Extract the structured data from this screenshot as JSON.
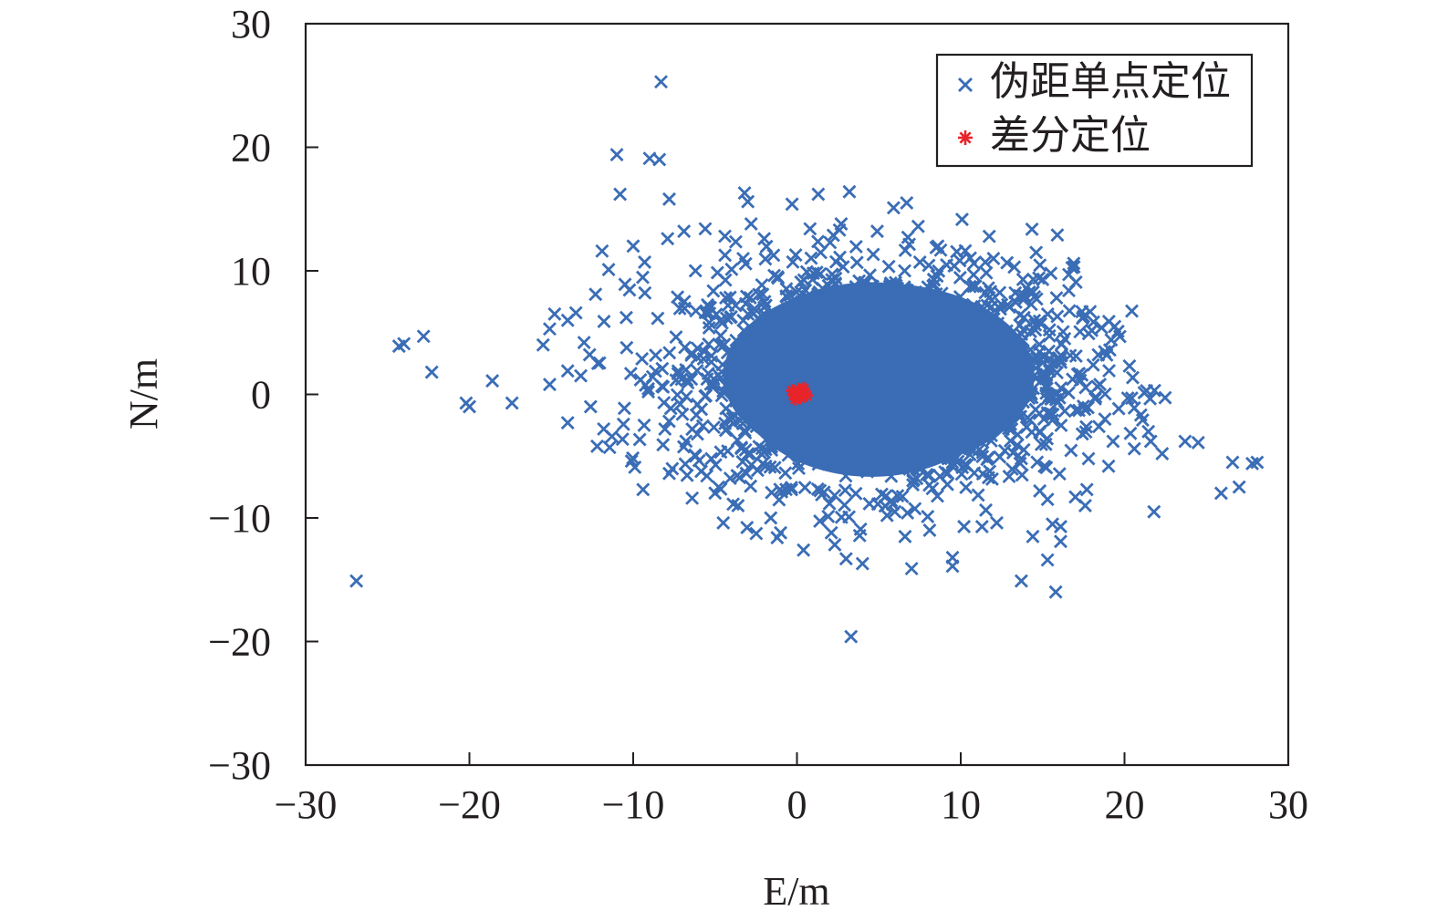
{
  "chart_data": {
    "type": "scatter",
    "title": "",
    "xlabel": "E/m",
    "ylabel": "N/m",
    "xlim": [
      -30,
      30
    ],
    "ylim": [
      -30,
      30
    ],
    "xticks": [
      -30,
      -20,
      -10,
      0,
      10,
      20,
      30
    ],
    "yticks": [
      -30,
      -20,
      -10,
      0,
      10,
      20,
      30
    ],
    "xtick_labels": [
      "−30",
      "−20",
      "−10",
      "0",
      "10",
      "20",
      "30"
    ],
    "ytick_labels": [
      "−30",
      "−20",
      "−10",
      "0",
      "10",
      "20",
      "30"
    ],
    "grid": false,
    "legend_position": "top-right",
    "series": [
      {
        "name": "伪距单点定位",
        "marker": "x",
        "color": "#3a6db5",
        "cloud": {
          "center": [
            5,
            1.5
          ],
          "semi_axes": [
            9.5,
            7.5
          ],
          "note_visible": false
        },
        "points": [
          [
            -8.3,
            25.3
          ],
          [
            -11.0,
            19.4
          ],
          [
            -9.0,
            19.1
          ],
          [
            -8.4,
            19.0
          ],
          [
            -10.8,
            16.2
          ],
          [
            1.3,
            16.2
          ],
          [
            3.2,
            16.4
          ],
          [
            -3.2,
            16.3
          ],
          [
            -7.8,
            15.8
          ],
          [
            -0.3,
            15.4
          ],
          [
            5.9,
            15.1
          ],
          [
            6.7,
            15.5
          ],
          [
            -3.0,
            15.6
          ],
          [
            7.4,
            13.6
          ],
          [
            4.9,
            13.2
          ],
          [
            -7.9,
            12.6
          ],
          [
            -10.0,
            12.0
          ],
          [
            -11.9,
            11.6
          ],
          [
            -9.3,
            10.7
          ],
          [
            -5.6,
            13.4
          ],
          [
            -2.0,
            12.6
          ],
          [
            10.8,
            10.6
          ],
          [
            11.5,
            10.7
          ],
          [
            9.6,
            10.4
          ],
          [
            13.8,
            9.3
          ],
          [
            15.9,
            12.9
          ],
          [
            16.9,
            10.6
          ],
          [
            16.6,
            9.7
          ],
          [
            15.5,
            9.8
          ],
          [
            15.0,
            9.3
          ],
          [
            14.5,
            7.9
          ],
          [
            16.6,
            8.4
          ],
          [
            17.5,
            6.3
          ],
          [
            17.9,
            6.7
          ],
          [
            -12.3,
            8.1
          ],
          [
            -11.5,
            10.1
          ],
          [
            -10.5,
            8.9
          ],
          [
            -13.5,
            6.6
          ],
          [
            -14.8,
            6.5
          ],
          [
            -14.0,
            6.0
          ],
          [
            -15.1,
            5.3
          ],
          [
            -15.5,
            4.0
          ],
          [
            -14.0,
            1.9
          ],
          [
            -15.1,
            0.8
          ],
          [
            -14.0,
            -2.3
          ],
          [
            -11.8,
            -2.8
          ],
          [
            -11.3,
            -3.4
          ],
          [
            -12.2,
            -4.2
          ],
          [
            -10.1,
            -5.4
          ],
          [
            -9.9,
            -5.9
          ],
          [
            -9.4,
            -7.7
          ],
          [
            -7.8,
            -6.4
          ],
          [
            -6.4,
            -8.4
          ],
          [
            -4.5,
            -10.4
          ],
          [
            -3.6,
            -9.0
          ],
          [
            -1.6,
            -10.0
          ],
          [
            -1.0,
            -11.2
          ],
          [
            0.4,
            -12.6
          ],
          [
            2.1,
            -11.2
          ],
          [
            3.0,
            -13.3
          ],
          [
            3.3,
            -19.6
          ],
          [
            4.0,
            -13.7
          ],
          [
            6.6,
            -11.5
          ],
          [
            7.0,
            -14.1
          ],
          [
            9.5,
            -13.2
          ],
          [
            9.5,
            -13.9
          ],
          [
            10.2,
            -10.7
          ],
          [
            11.3,
            -10.7
          ],
          [
            12.2,
            -10.4
          ],
          [
            13.7,
            -15.1
          ],
          [
            14.4,
            -11.5
          ],
          [
            15.3,
            -13.4
          ],
          [
            15.8,
            -16.0
          ],
          [
            15.6,
            -10.5
          ],
          [
            16.1,
            -10.7
          ],
          [
            16.1,
            -11.9
          ],
          [
            15.3,
            -8.5
          ],
          [
            17.0,
            -8.3
          ],
          [
            17.6,
            -9.0
          ],
          [
            17.7,
            -7.7
          ],
          [
            19.3,
            -3.8
          ],
          [
            20.6,
            -4.4
          ],
          [
            20.2,
            -0.3
          ],
          [
            20.6,
            -1.1
          ],
          [
            20.3,
            2.3
          ],
          [
            19.1,
            3.6
          ],
          [
            18.4,
            3.2
          ],
          [
            18.6,
            5.4
          ],
          [
            19.4,
            5.5
          ],
          [
            19.6,
            5.1
          ],
          [
            21.8,
            -9.5
          ],
          [
            22.3,
            -4.8
          ],
          [
            21.6,
            -3.8
          ],
          [
            23.7,
            -3.8
          ],
          [
            24.5,
            -3.9
          ],
          [
            25.9,
            -8.0
          ],
          [
            26.6,
            -5.5
          ],
          [
            27.0,
            -7.5
          ],
          [
            27.8,
            -5.6
          ],
          [
            28.1,
            -5.5
          ],
          [
            -24.3,
            3.9
          ],
          [
            -24.0,
            4.1
          ],
          [
            -22.8,
            4.7
          ],
          [
            -22.3,
            1.8
          ],
          [
            -20.2,
            -0.7
          ],
          [
            -20.0,
            -1.0
          ],
          [
            -18.6,
            1.1
          ],
          [
            -17.4,
            -0.7
          ],
          [
            -26.9,
            -15.1
          ],
          [
            8.1,
            -11.0
          ],
          [
            5.5,
            -9.8
          ],
          [
            -5.5,
            -6.6
          ],
          [
            -2.8,
            13.8
          ],
          [
            0.8,
            13.4
          ],
          [
            2.7,
            13.8
          ],
          [
            8.6,
            12.0
          ],
          [
            12.0,
            11.0
          ],
          [
            -6.9,
            13.2
          ],
          [
            -4.4,
            12.8
          ],
          [
            18.5,
            0.8
          ],
          [
            18.8,
            -2.0
          ],
          [
            17.8,
            -5.2
          ],
          [
            -13.2,
            1.5
          ],
          [
            -13.0,
            4.2
          ],
          [
            -12.6,
            -1.0
          ]
        ]
      },
      {
        "name": "差分定位",
        "marker": "asterisk",
        "color": "#e8242b",
        "cloud": {
          "center": [
            0.15,
            0.05
          ],
          "semi_axes": [
            0.55,
            0.6
          ],
          "note_visible": false
        },
        "points": [
          [
            0.0,
            0.0
          ],
          [
            0.3,
            0.2
          ],
          [
            -0.2,
            -0.1
          ],
          [
            0.5,
            0.1
          ],
          [
            0.1,
            0.4
          ],
          [
            0.2,
            -0.3
          ],
          [
            -0.3,
            0.3
          ],
          [
            0.6,
            -0.1
          ],
          [
            0.4,
            0.5
          ],
          [
            -0.1,
            -0.4
          ]
        ]
      }
    ]
  },
  "colors": {
    "axis": "#231f20",
    "cross_series": "#3a6db5",
    "asterisk_series": "#e8242b"
  }
}
